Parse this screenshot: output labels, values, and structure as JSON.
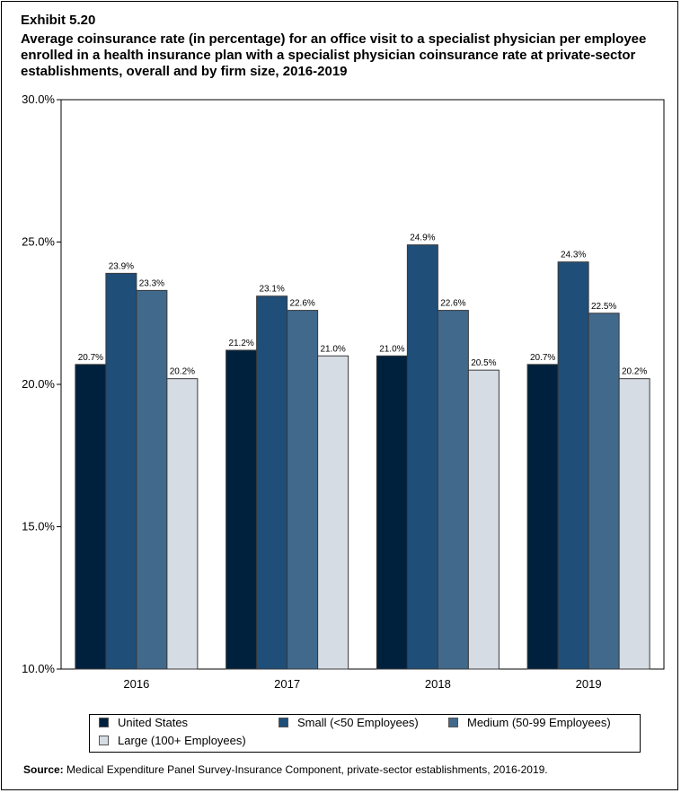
{
  "header": {
    "exhibit": "Exhibit 5.20",
    "title": "Average coinsurance rate (in percentage) for an office visit to a specialist physician per employee enrolled in a health insurance plan with a specialist physician coinsurance rate at private-sector establishments, overall and by firm size, 2016-2019"
  },
  "chart_data": {
    "type": "bar",
    "categories": [
      "2016",
      "2017",
      "2018",
      "2019"
    ],
    "series": [
      {
        "name": "United States",
        "values": [
          20.7,
          21.2,
          21.0,
          20.7
        ],
        "labels": [
          "20.7%",
          "21.2%",
          "21.0%",
          "20.7%"
        ],
        "color": "#00213d"
      },
      {
        "name": "Small (<50 Employees)",
        "values": [
          23.9,
          23.1,
          24.9,
          24.3
        ],
        "labels": [
          "23.9%",
          "23.1%",
          "24.9%",
          "24.3%"
        ],
        "color": "#1f4e79"
      },
      {
        "name": "Medium (50-99 Employees)",
        "values": [
          23.3,
          22.6,
          22.6,
          22.5
        ],
        "labels": [
          "23.3%",
          "22.6%",
          "22.6%",
          "22.5%"
        ],
        "color": "#41698c"
      },
      {
        "name": "Large (100+ Employees)",
        "values": [
          20.2,
          21.0,
          20.5,
          20.2
        ],
        "labels": [
          "20.2%",
          "21.0%",
          "20.5%",
          "20.2%"
        ],
        "color": "#d6dce4"
      }
    ],
    "yticks": [
      10,
      15,
      20,
      25,
      30
    ],
    "ytick_labels": [
      "10.0%",
      "15.0%",
      "20.0%",
      "25.0%",
      "30.0%"
    ],
    "ylim": [
      10,
      30
    ],
    "grid": false,
    "legend_position": "bottom"
  },
  "source": {
    "label": "Source:",
    "text": " Medical Expenditure Panel Survey-Insurance Component, private-sector establishments, 2016-2019."
  }
}
